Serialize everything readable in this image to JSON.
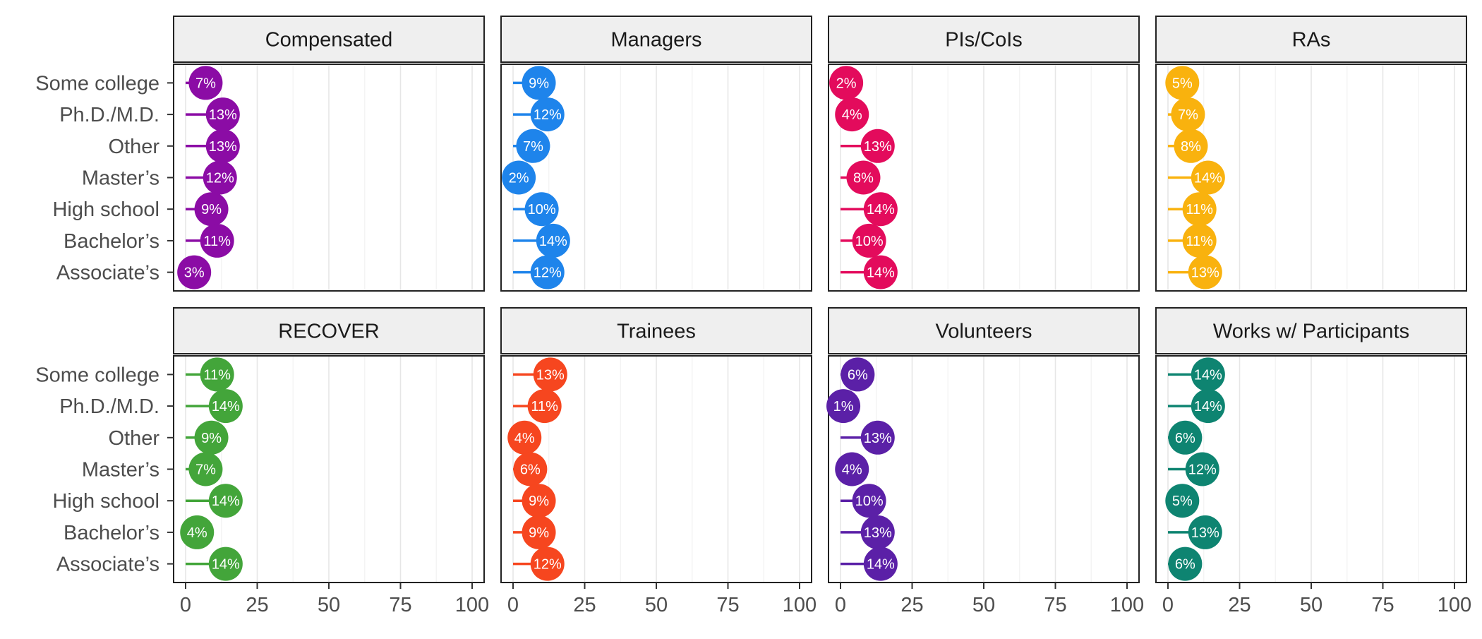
{
  "chart_data": {
    "type": "dot",
    "categories": [
      "Some college",
      "Ph.D./M.D.",
      "Other",
      "Master’s",
      "High school",
      "Bachelor’s",
      "Associate’s"
    ],
    "xlim": [
      0,
      100
    ],
    "x_ticks": [
      0,
      25,
      50,
      75,
      100
    ],
    "x_tick_labels": [
      "0",
      "25",
      "50",
      "75",
      "100"
    ],
    "grid": "vertical-major-and-minor",
    "panels": [
      {
        "title": "Compensated",
        "color": "#8b0ca5",
        "values": [
          7,
          13,
          13,
          12,
          9,
          11,
          3
        ],
        "labels": [
          "7%",
          "13%",
          "13%",
          "12%",
          "9%",
          "11%",
          "3%"
        ]
      },
      {
        "title": "Managers",
        "color": "#1e84eb",
        "values": [
          9,
          12,
          7,
          2,
          10,
          14,
          12
        ],
        "labels": [
          "9%",
          "12%",
          "7%",
          "2%",
          "10%",
          "14%",
          "12%"
        ]
      },
      {
        "title": "PIs/CoIs",
        "color": "#e30b5c",
        "values": [
          2,
          4,
          13,
          8,
          14,
          10,
          14
        ],
        "labels": [
          "2%",
          "4%",
          "13%",
          "8%",
          "14%",
          "10%",
          "14%"
        ]
      },
      {
        "title": "RAs",
        "color": "#f9b20e",
        "values": [
          5,
          7,
          8,
          14,
          11,
          11,
          13
        ],
        "labels": [
          "5%",
          "7%",
          "8%",
          "14%",
          "11%",
          "11%",
          "13%"
        ]
      },
      {
        "title": "RECOVER",
        "color": "#43a53a",
        "values": [
          11,
          14,
          9,
          7,
          14,
          4,
          14
        ],
        "labels": [
          "11%",
          "14%",
          "9%",
          "7%",
          "14%",
          "4%",
          "14%"
        ]
      },
      {
        "title": "Trainees",
        "color": "#f6461f",
        "values": [
          13,
          11,
          4,
          6,
          9,
          9,
          12
        ],
        "labels": [
          "13%",
          "11%",
          "4%",
          "6%",
          "9%",
          "9%",
          "12%"
        ]
      },
      {
        "title": "Volunteers",
        "color": "#5b20a7",
        "values": [
          6,
          1,
          13,
          4,
          10,
          13,
          14
        ],
        "labels": [
          "6%",
          "1%",
          "13%",
          "4%",
          "10%",
          "13%",
          "14%"
        ]
      },
      {
        "title": "Works w/ Participants",
        "color": "#0e8471",
        "values": [
          14,
          14,
          6,
          12,
          5,
          13,
          6
        ],
        "labels": [
          "14%",
          "14%",
          "6%",
          "12%",
          "5%",
          "13%",
          "6%"
        ]
      }
    ]
  }
}
